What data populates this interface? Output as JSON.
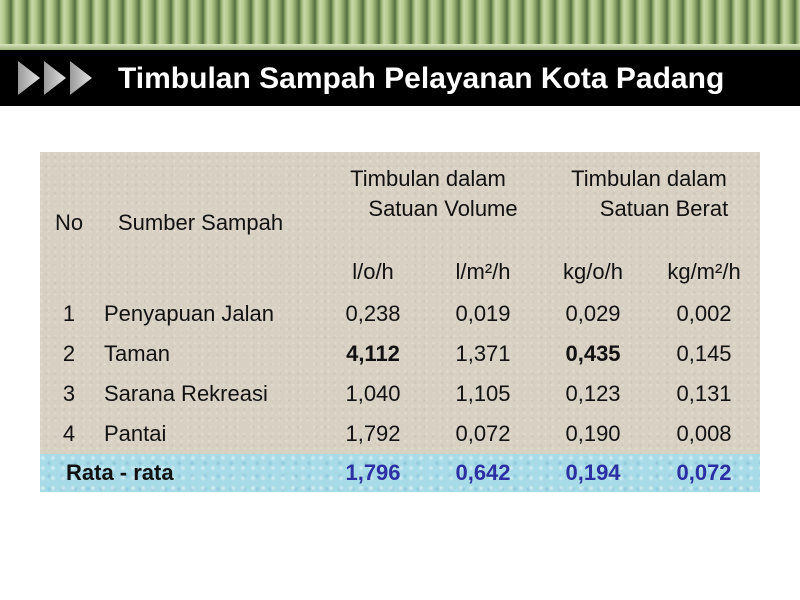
{
  "title": "Timbulan Sampah Pelayanan Kota Padang",
  "table": {
    "headers": {
      "no": "No",
      "sumber": "Sumber Sampah",
      "volume_line1": "Timbulan dalam",
      "volume_line2": "Satuan Volume",
      "berat_line1": "Timbulan dalam",
      "berat_line2": "Satuan Berat",
      "units": [
        "l/o/h",
        "l/m²/h",
        "kg/o/h",
        "kg/m²/h"
      ]
    },
    "rows": [
      {
        "no": "1",
        "name": "Penyapuan Jalan",
        "v1": "0,238",
        "v2": "0,019",
        "w1": "0,029",
        "w2": "0,002"
      },
      {
        "no": "2",
        "name": "Taman",
        "v1": "4,112",
        "v2": "1,371",
        "w1": "0,435",
        "w2": "0,145"
      },
      {
        "no": "3",
        "name": "Sarana Rekreasi",
        "v1": "1,040",
        "v2": "1,105",
        "w1": "0,123",
        "w2": "0,131"
      },
      {
        "no": "4",
        "name": "Pantai",
        "v1": "1,792",
        "v2": "0,072",
        "w1": "0,190",
        "w2": "0,008"
      }
    ],
    "average": {
      "label": "Rata - rata",
      "v1": "1,796",
      "v2": "0,642",
      "w1": "0,194",
      "w2": "0,072"
    }
  },
  "colors": {
    "title_bar": "#000000",
    "average_row": "#a7dbe8",
    "average_text": "#2b2fa3"
  }
}
